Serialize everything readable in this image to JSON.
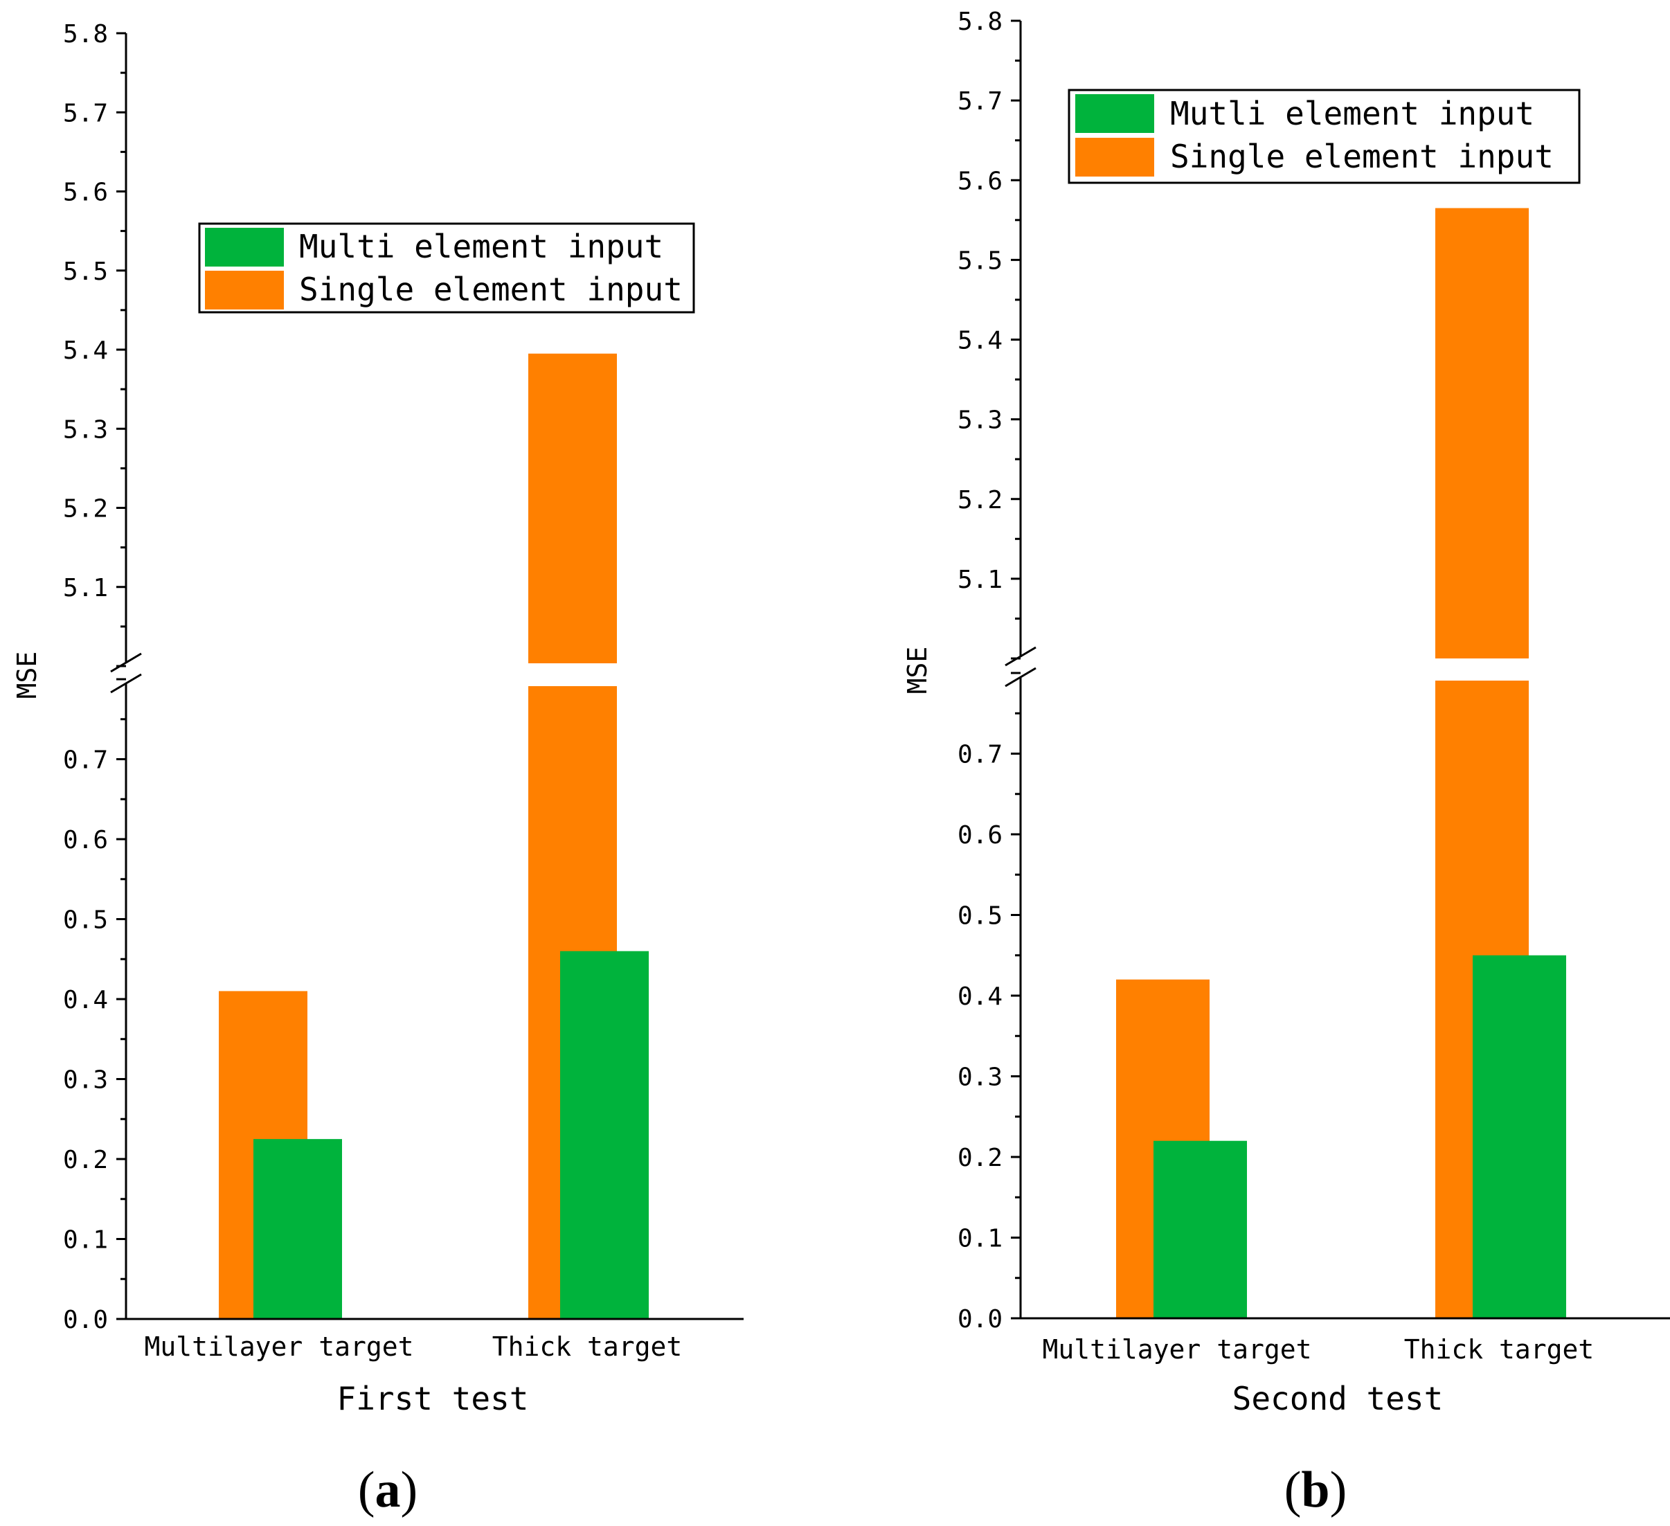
{
  "colors": {
    "multi": "#00b33c",
    "single": "#ff8000",
    "axis": "#000000"
  },
  "chart_data": [
    {
      "type": "bar",
      "panel_label": {
        "open": "(",
        "letter": "a",
        "close": ")"
      },
      "title": "",
      "xlabel": "First test",
      "ylabel": "MSE",
      "categories": [
        "Multilayer target",
        "Thick target"
      ],
      "series": [
        {
          "name": "Multi element input",
          "values": [
            0.225,
            0.46
          ]
        },
        {
          "name": "Single element input",
          "values": [
            0.41,
            5.395
          ]
        }
      ],
      "y_break": {
        "lower": [
          0,
          0.8
        ],
        "upper": [
          5.0,
          5.8
        ]
      },
      "lower_ticks": [
        "0.0",
        "0.1",
        "0.2",
        "0.3",
        "0.4",
        "0.5",
        "0.6",
        "0.7"
      ],
      "upper_ticks": [
        "5.1",
        "5.2",
        "5.3",
        "5.4",
        "5.5",
        "5.6",
        "5.7",
        "5.8"
      ],
      "legend": {
        "position": "upper-middle",
        "entries": [
          "Multi element input",
          "Single element input"
        ]
      }
    },
    {
      "type": "bar",
      "panel_label": {
        "open": "(",
        "letter": "b",
        "close": ")"
      },
      "title": "",
      "xlabel": "Second test",
      "ylabel": "MSE",
      "categories": [
        "Multilayer target",
        "Thick target"
      ],
      "series": [
        {
          "name": "Mutli element input",
          "values": [
            0.22,
            0.45
          ]
        },
        {
          "name": "Single element input",
          "values": [
            0.42,
            5.565
          ]
        }
      ],
      "y_break": {
        "lower": [
          0,
          0.8
        ],
        "upper": [
          5.0,
          5.8
        ]
      },
      "lower_ticks": [
        "0.0",
        "0.1",
        "0.2",
        "0.3",
        "0.4",
        "0.5",
        "0.6",
        "0.7"
      ],
      "upper_ticks": [
        "5.1",
        "5.2",
        "5.3",
        "5.4",
        "5.5",
        "5.6",
        "5.7",
        "5.8"
      ],
      "legend": {
        "position": "top-right",
        "entries": [
          "Mutli element input",
          "Single element input"
        ]
      }
    }
  ]
}
